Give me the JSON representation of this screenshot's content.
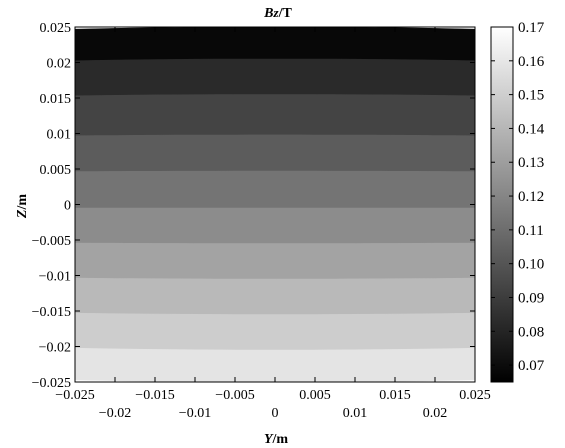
{
  "chart_data": {
    "type": "heatmap",
    "title_var": "B",
    "title_sub": "z",
    "title_unit": "/T",
    "xlabel_var": "Y",
    "xlabel_unit": "/m",
    "ylabel_var": "Z",
    "ylabel_unit": "/m",
    "xlim": [
      -0.025,
      0.025
    ],
    "ylim": [
      -0.025,
      0.025
    ],
    "x_ticks_upper": [
      "-0.025",
      "-0.015",
      "-0.005",
      "0.005",
      "0.015",
      "0.025"
    ],
    "x_ticks_upper_values": [
      -0.025,
      -0.015,
      -0.005,
      0.005,
      0.015,
      0.025
    ],
    "x_ticks_lower": [
      "-0.02",
      "-0.01",
      "0",
      "0.01",
      "0.02"
    ],
    "x_ticks_lower_values": [
      -0.02,
      -0.01,
      0,
      0.01,
      0.02
    ],
    "y_ticks": [
      "0.025",
      "0.02",
      "0.015",
      "0.01",
      "0.005",
      "0",
      "-0.005",
      "-0.01",
      "-0.015",
      "-0.02",
      "-0.025"
    ],
    "y_tick_values": [
      0.025,
      0.02,
      0.015,
      0.01,
      0.005,
      0,
      -0.005,
      -0.01,
      -0.015,
      -0.02,
      -0.025
    ],
    "colorbar": {
      "range": [
        0.065,
        0.17
      ],
      "ticks": [
        "0.17",
        "0.16",
        "0.15",
        "0.14",
        "0.13",
        "0.12",
        "0.11",
        "0.10",
        "0.09",
        "0.08",
        "0.07"
      ],
      "tick_values": [
        0.17,
        0.16,
        0.15,
        0.14,
        0.13,
        0.12,
        0.11,
        0.1,
        0.09,
        0.08,
        0.07
      ],
      "colormap": "gray"
    },
    "contour_bands": [
      {
        "z_range": [
          0.0205,
          0.025
        ],
        "value": 0.07,
        "color": "#080808"
      },
      {
        "z_range": [
          0.0155,
          0.0205
        ],
        "value": 0.08,
        "color": "#2a2a2a"
      },
      {
        "z_range": [
          0.0098,
          0.0155
        ],
        "value": 0.09,
        "color": "#444444"
      },
      {
        "z_range": [
          0.0047,
          0.0098
        ],
        "value": 0.1,
        "color": "#5c5c5c"
      },
      {
        "z_range": [
          -0.0005,
          0.0047
        ],
        "value": 0.11,
        "color": "#747474"
      },
      {
        "z_range": [
          -0.0055,
          -0.0005
        ],
        "value": 0.12,
        "color": "#8c8c8c"
      },
      {
        "z_range": [
          -0.0105,
          -0.0055
        ],
        "value": 0.13,
        "color": "#a3a3a3"
      },
      {
        "z_range": [
          -0.0155,
          -0.0105
        ],
        "value": 0.14,
        "color": "#b9b9b9"
      },
      {
        "z_range": [
          -0.0205,
          -0.0155
        ],
        "value": 0.15,
        "color": "#cdcdcd"
      },
      {
        "z_range": [
          -0.025,
          -0.0205
        ],
        "value": 0.16,
        "color": "#e4e4e4"
      }
    ],
    "grid": false
  }
}
